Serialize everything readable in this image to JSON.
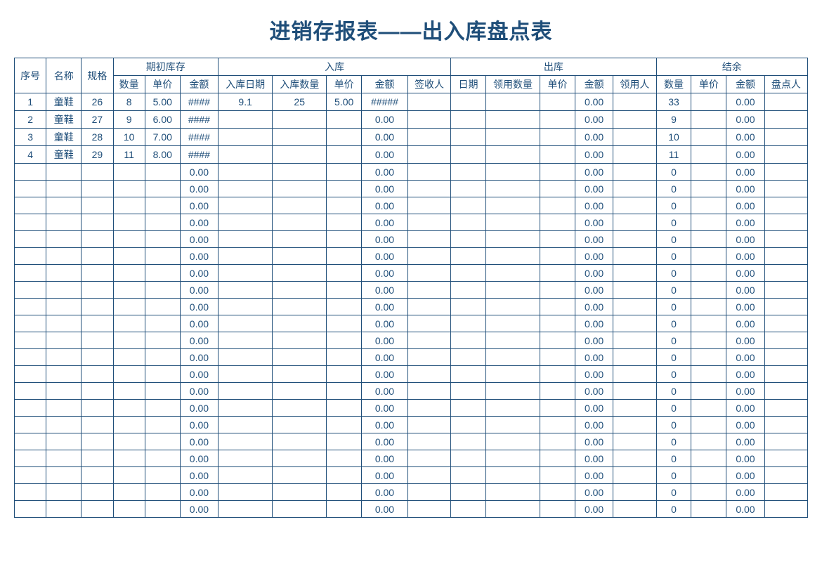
{
  "title": "进销存报表——出入库盘点表",
  "colors": {
    "border": "#1f4e79",
    "text": "#1f4e79",
    "background": "#ffffff"
  },
  "headers": {
    "row1": {
      "seq": "序号",
      "name": "名称",
      "spec": "规格",
      "initial": "期初库存",
      "inbound": "入库",
      "outbound": "出库",
      "balance": "结余"
    },
    "row2": {
      "qty": "数量",
      "price": "单价",
      "amount": "金额",
      "in_date": "入库日期",
      "in_qty": "入库数量",
      "in_price": "单价",
      "in_amount": "金额",
      "signer": "签收人",
      "out_date": "日期",
      "out_qty": "领用数量",
      "out_price": "单价",
      "out_amount": "金额",
      "user": "领用人",
      "bal_qty": "数量",
      "bal_price": "单价",
      "bal_amount": "金额",
      "checker": "盘点人"
    }
  },
  "rows": [
    {
      "seq": "1",
      "name": "童鞋",
      "spec": "26",
      "qty": "8",
      "price": "5.00",
      "amount": "####",
      "in_date": "9.1",
      "in_qty": "25",
      "in_price": "5.00",
      "in_amount": "#####",
      "signer": "",
      "out_date": "",
      "out_qty": "",
      "out_price": "",
      "out_amount": "0.00",
      "user": "",
      "bal_qty": "33",
      "bal_price": "",
      "bal_amount": "0.00",
      "checker": ""
    },
    {
      "seq": "2",
      "name": "童鞋",
      "spec": "27",
      "qty": "9",
      "price": "6.00",
      "amount": "####",
      "in_date": "",
      "in_qty": "",
      "in_price": "",
      "in_amount": "0.00",
      "signer": "",
      "out_date": "",
      "out_qty": "",
      "out_price": "",
      "out_amount": "0.00",
      "user": "",
      "bal_qty": "9",
      "bal_price": "",
      "bal_amount": "0.00",
      "checker": ""
    },
    {
      "seq": "3",
      "name": "童鞋",
      "spec": "28",
      "qty": "10",
      "price": "7.00",
      "amount": "####",
      "in_date": "",
      "in_qty": "",
      "in_price": "",
      "in_amount": "0.00",
      "signer": "",
      "out_date": "",
      "out_qty": "",
      "out_price": "",
      "out_amount": "0.00",
      "user": "",
      "bal_qty": "10",
      "bal_price": "",
      "bal_amount": "0.00",
      "checker": ""
    },
    {
      "seq": "4",
      "name": "童鞋",
      "spec": "29",
      "qty": "11",
      "price": "8.00",
      "amount": "####",
      "in_date": "",
      "in_qty": "",
      "in_price": "",
      "in_amount": "0.00",
      "signer": "",
      "out_date": "",
      "out_qty": "",
      "out_price": "",
      "out_amount": "0.00",
      "user": "",
      "bal_qty": "11",
      "bal_price": "",
      "bal_amount": "0.00",
      "checker": ""
    },
    {
      "seq": "",
      "name": "",
      "spec": "",
      "qty": "",
      "price": "",
      "amount": "0.00",
      "in_date": "",
      "in_qty": "",
      "in_price": "",
      "in_amount": "0.00",
      "signer": "",
      "out_date": "",
      "out_qty": "",
      "out_price": "",
      "out_amount": "0.00",
      "user": "",
      "bal_qty": "0",
      "bal_price": "",
      "bal_amount": "0.00",
      "checker": ""
    },
    {
      "seq": "",
      "name": "",
      "spec": "",
      "qty": "",
      "price": "",
      "amount": "0.00",
      "in_date": "",
      "in_qty": "",
      "in_price": "",
      "in_amount": "0.00",
      "signer": "",
      "out_date": "",
      "out_qty": "",
      "out_price": "",
      "out_amount": "0.00",
      "user": "",
      "bal_qty": "0",
      "bal_price": "",
      "bal_amount": "0.00",
      "checker": ""
    },
    {
      "seq": "",
      "name": "",
      "spec": "",
      "qty": "",
      "price": "",
      "amount": "0.00",
      "in_date": "",
      "in_qty": "",
      "in_price": "",
      "in_amount": "0.00",
      "signer": "",
      "out_date": "",
      "out_qty": "",
      "out_price": "",
      "out_amount": "0.00",
      "user": "",
      "bal_qty": "0",
      "bal_price": "",
      "bal_amount": "0.00",
      "checker": ""
    },
    {
      "seq": "",
      "name": "",
      "spec": "",
      "qty": "",
      "price": "",
      "amount": "0.00",
      "in_date": "",
      "in_qty": "",
      "in_price": "",
      "in_amount": "0.00",
      "signer": "",
      "out_date": "",
      "out_qty": "",
      "out_price": "",
      "out_amount": "0.00",
      "user": "",
      "bal_qty": "0",
      "bal_price": "",
      "bal_amount": "0.00",
      "checker": ""
    },
    {
      "seq": "",
      "name": "",
      "spec": "",
      "qty": "",
      "price": "",
      "amount": "0.00",
      "in_date": "",
      "in_qty": "",
      "in_price": "",
      "in_amount": "0.00",
      "signer": "",
      "out_date": "",
      "out_qty": "",
      "out_price": "",
      "out_amount": "0.00",
      "user": "",
      "bal_qty": "0",
      "bal_price": "",
      "bal_amount": "0.00",
      "checker": ""
    },
    {
      "seq": "",
      "name": "",
      "spec": "",
      "qty": "",
      "price": "",
      "amount": "0.00",
      "in_date": "",
      "in_qty": "",
      "in_price": "",
      "in_amount": "0.00",
      "signer": "",
      "out_date": "",
      "out_qty": "",
      "out_price": "",
      "out_amount": "0.00",
      "user": "",
      "bal_qty": "0",
      "bal_price": "",
      "bal_amount": "0.00",
      "checker": ""
    },
    {
      "seq": "",
      "name": "",
      "spec": "",
      "qty": "",
      "price": "",
      "amount": "0.00",
      "in_date": "",
      "in_qty": "",
      "in_price": "",
      "in_amount": "0.00",
      "signer": "",
      "out_date": "",
      "out_qty": "",
      "out_price": "",
      "out_amount": "0.00",
      "user": "",
      "bal_qty": "0",
      "bal_price": "",
      "bal_amount": "0.00",
      "checker": ""
    },
    {
      "seq": "",
      "name": "",
      "spec": "",
      "qty": "",
      "price": "",
      "amount": "0.00",
      "in_date": "",
      "in_qty": "",
      "in_price": "",
      "in_amount": "0.00",
      "signer": "",
      "out_date": "",
      "out_qty": "",
      "out_price": "",
      "out_amount": "0.00",
      "user": "",
      "bal_qty": "0",
      "bal_price": "",
      "bal_amount": "0.00",
      "checker": ""
    },
    {
      "seq": "",
      "name": "",
      "spec": "",
      "qty": "",
      "price": "",
      "amount": "0.00",
      "in_date": "",
      "in_qty": "",
      "in_price": "",
      "in_amount": "0.00",
      "signer": "",
      "out_date": "",
      "out_qty": "",
      "out_price": "",
      "out_amount": "0.00",
      "user": "",
      "bal_qty": "0",
      "bal_price": "",
      "bal_amount": "0.00",
      "checker": ""
    },
    {
      "seq": "",
      "name": "",
      "spec": "",
      "qty": "",
      "price": "",
      "amount": "0.00",
      "in_date": "",
      "in_qty": "",
      "in_price": "",
      "in_amount": "0.00",
      "signer": "",
      "out_date": "",
      "out_qty": "",
      "out_price": "",
      "out_amount": "0.00",
      "user": "",
      "bal_qty": "0",
      "bal_price": "",
      "bal_amount": "0.00",
      "checker": ""
    },
    {
      "seq": "",
      "name": "",
      "spec": "",
      "qty": "",
      "price": "",
      "amount": "0.00",
      "in_date": "",
      "in_qty": "",
      "in_price": "",
      "in_amount": "0.00",
      "signer": "",
      "out_date": "",
      "out_qty": "",
      "out_price": "",
      "out_amount": "0.00",
      "user": "",
      "bal_qty": "0",
      "bal_price": "",
      "bal_amount": "0.00",
      "checker": ""
    },
    {
      "seq": "",
      "name": "",
      "spec": "",
      "qty": "",
      "price": "",
      "amount": "0.00",
      "in_date": "",
      "in_qty": "",
      "in_price": "",
      "in_amount": "0.00",
      "signer": "",
      "out_date": "",
      "out_qty": "",
      "out_price": "",
      "out_amount": "0.00",
      "user": "",
      "bal_qty": "0",
      "bal_price": "",
      "bal_amount": "0.00",
      "checker": ""
    },
    {
      "seq": "",
      "name": "",
      "spec": "",
      "qty": "",
      "price": "",
      "amount": "0.00",
      "in_date": "",
      "in_qty": "",
      "in_price": "",
      "in_amount": "0.00",
      "signer": "",
      "out_date": "",
      "out_qty": "",
      "out_price": "",
      "out_amount": "0.00",
      "user": "",
      "bal_qty": "0",
      "bal_price": "",
      "bal_amount": "0.00",
      "checker": ""
    },
    {
      "seq": "",
      "name": "",
      "spec": "",
      "qty": "",
      "price": "",
      "amount": "0.00",
      "in_date": "",
      "in_qty": "",
      "in_price": "",
      "in_amount": "0.00",
      "signer": "",
      "out_date": "",
      "out_qty": "",
      "out_price": "",
      "out_amount": "0.00",
      "user": "",
      "bal_qty": "0",
      "bal_price": "",
      "bal_amount": "0.00",
      "checker": ""
    },
    {
      "seq": "",
      "name": "",
      "spec": "",
      "qty": "",
      "price": "",
      "amount": "0.00",
      "in_date": "",
      "in_qty": "",
      "in_price": "",
      "in_amount": "0.00",
      "signer": "",
      "out_date": "",
      "out_qty": "",
      "out_price": "",
      "out_amount": "0.00",
      "user": "",
      "bal_qty": "0",
      "bal_price": "",
      "bal_amount": "0.00",
      "checker": ""
    },
    {
      "seq": "",
      "name": "",
      "spec": "",
      "qty": "",
      "price": "",
      "amount": "0.00",
      "in_date": "",
      "in_qty": "",
      "in_price": "",
      "in_amount": "0.00",
      "signer": "",
      "out_date": "",
      "out_qty": "",
      "out_price": "",
      "out_amount": "0.00",
      "user": "",
      "bal_qty": "0",
      "bal_price": "",
      "bal_amount": "0.00",
      "checker": ""
    },
    {
      "seq": "",
      "name": "",
      "spec": "",
      "qty": "",
      "price": "",
      "amount": "0.00",
      "in_date": "",
      "in_qty": "",
      "in_price": "",
      "in_amount": "0.00",
      "signer": "",
      "out_date": "",
      "out_qty": "",
      "out_price": "",
      "out_amount": "0.00",
      "user": "",
      "bal_qty": "0",
      "bal_price": "",
      "bal_amount": "0.00",
      "checker": ""
    },
    {
      "seq": "",
      "name": "",
      "spec": "",
      "qty": "",
      "price": "",
      "amount": "0.00",
      "in_date": "",
      "in_qty": "",
      "in_price": "",
      "in_amount": "0.00",
      "signer": "",
      "out_date": "",
      "out_qty": "",
      "out_price": "",
      "out_amount": "0.00",
      "user": "",
      "bal_qty": "0",
      "bal_price": "",
      "bal_amount": "0.00",
      "checker": ""
    },
    {
      "seq": "",
      "name": "",
      "spec": "",
      "qty": "",
      "price": "",
      "amount": "0.00",
      "in_date": "",
      "in_qty": "",
      "in_price": "",
      "in_amount": "0.00",
      "signer": "",
      "out_date": "",
      "out_qty": "",
      "out_price": "",
      "out_amount": "0.00",
      "user": "",
      "bal_qty": "0",
      "bal_price": "",
      "bal_amount": "0.00",
      "checker": ""
    },
    {
      "seq": "",
      "name": "",
      "spec": "",
      "qty": "",
      "price": "",
      "amount": "0.00",
      "in_date": "",
      "in_qty": "",
      "in_price": "",
      "in_amount": "0.00",
      "signer": "",
      "out_date": "",
      "out_qty": "",
      "out_price": "",
      "out_amount": "0.00",
      "user": "",
      "bal_qty": "0",
      "bal_price": "",
      "bal_amount": "0.00",
      "checker": ""
    },
    {
      "seq": "",
      "name": "",
      "spec": "",
      "qty": "",
      "price": "",
      "amount": "0.00",
      "in_date": "",
      "in_qty": "",
      "in_price": "",
      "in_amount": "0.00",
      "signer": "",
      "out_date": "",
      "out_qty": "",
      "out_price": "",
      "out_amount": "0.00",
      "user": "",
      "bal_qty": "0",
      "bal_price": "",
      "bal_amount": "0.00",
      "checker": ""
    }
  ]
}
